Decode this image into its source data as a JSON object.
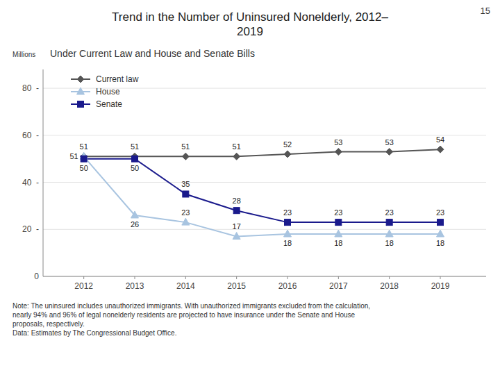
{
  "chart_data": {
    "type": "line",
    "title": "Trend in the Number of Uninsured Nonelderly, 2012–\n2019",
    "subtitle": "Under Current Law and House and Senate Bills",
    "ylabel": "Millions",
    "annotations": [
      "15",
      "Note: The uninsured includes unauthorized immigrants. With unauthorized immigrants excluded from the calculation,\nnearly 94% and 96% of legal nonelderly residents are projected to have insurance under the Senate and House\nproposals, respectively.\nData: Estimates by The Congressional Budget Office."
    ],
    "x": [
      2012,
      2013,
      2014,
      2015,
      2016,
      2017,
      2018,
      2019
    ],
    "series": [
      {
        "name": "Current law",
        "color": "#555555",
        "marker": "diamond",
        "values": [
          51,
          51,
          51,
          51,
          52,
          53,
          53,
          54
        ]
      },
      {
        "name": "House",
        "color": "#a8c4e0",
        "marker": "triangle",
        "values": [
          51,
          26,
          23,
          17,
          18,
          18,
          18,
          18
        ]
      },
      {
        "name": "Senate",
        "color": "#1a1a8c",
        "marker": "square",
        "values": [
          50,
          50,
          35,
          28,
          23,
          23,
          23,
          23
        ]
      }
    ],
    "xlim": [
      2011.2,
      2019.9
    ],
    "xticks": [
      2012,
      2013,
      2014,
      2015,
      2016,
      2017,
      2018,
      2019
    ],
    "ylim": [
      0,
      88
    ],
    "yticks": [
      0,
      {
        "value": 20,
        "label": "20  -"
      },
      {
        "value": 40,
        "label": "40  -"
      },
      {
        "value": 60,
        "label": "60  -"
      },
      {
        "value": 80,
        "label": "80  -"
      }
    ],
    "grid": true,
    "legend": "upper left",
    "data_labels": true
  }
}
